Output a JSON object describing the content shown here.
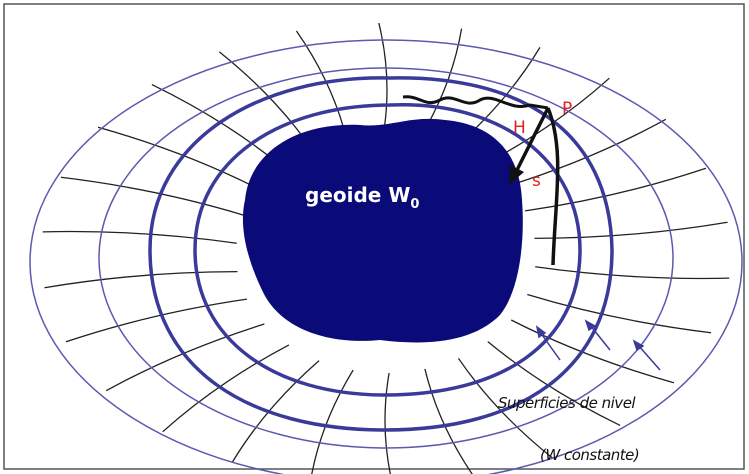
{
  "labels": {
    "geoid": "geoide W",
    "geoid_sub": "0",
    "point": "P",
    "height": "H",
    "distance": "s"
  },
  "caption": [
    "Superficies de nivel",
    "(W constante)"
  ]
}
